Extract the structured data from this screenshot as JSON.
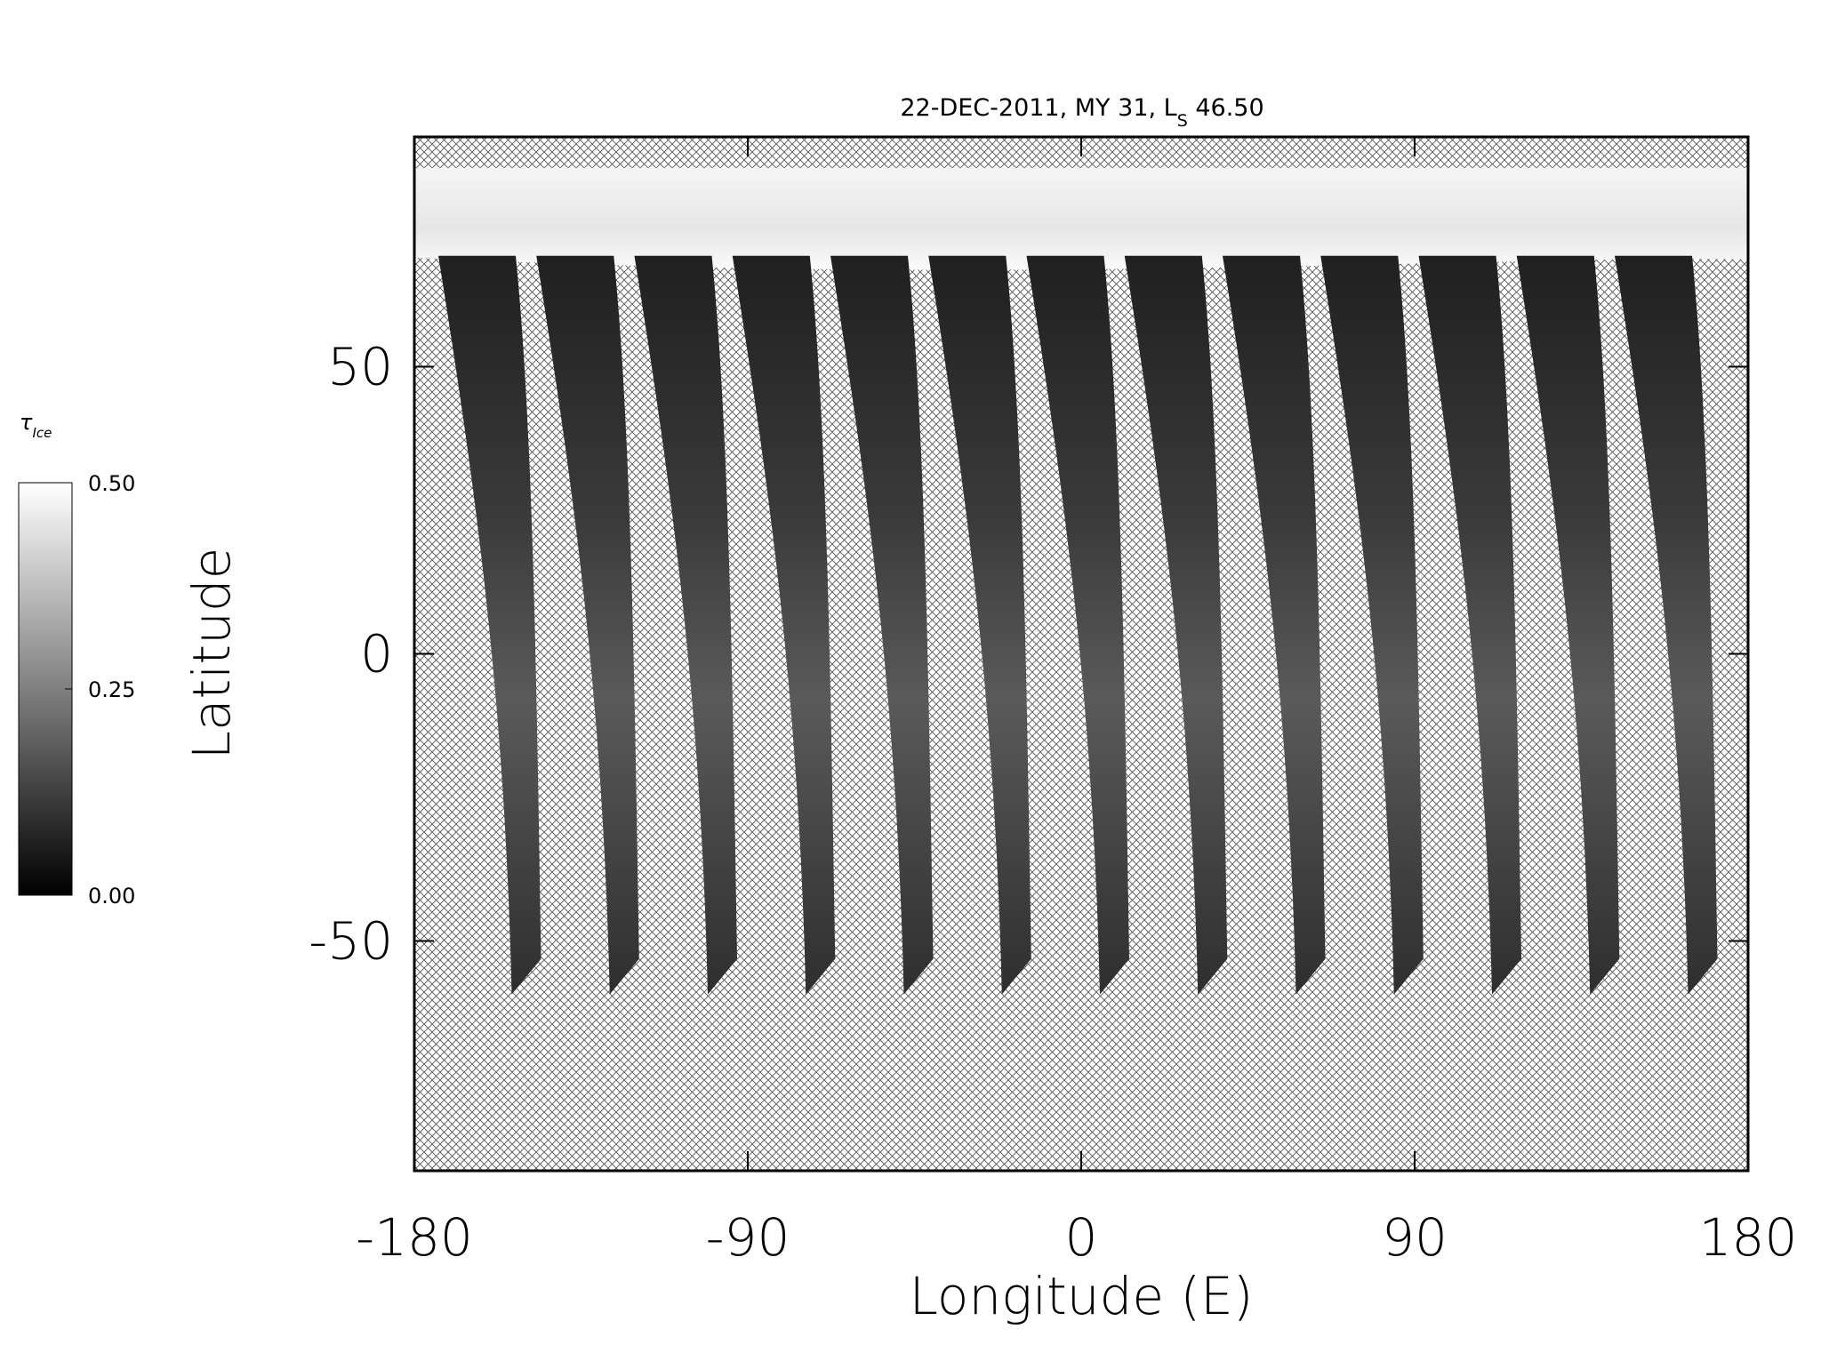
{
  "chart_data": {
    "type": "heatmap",
    "title": [
      "22-DEC-2011, MY 31,  L",
      "S",
      " 46.50"
    ],
    "xlabel": "Longitude (E)",
    "ylabel": "Latitude",
    "xlim": [
      -180,
      180
    ],
    "ylim": [
      -90,
      90
    ],
    "xticks": [
      -180,
      -90,
      0,
      90,
      180
    ],
    "yticks": [
      -50,
      0,
      50
    ],
    "colorbar": {
      "label": [
        "τ",
        "Ice"
      ],
      "lim": [
        0,
        0.5
      ],
      "ticks": [
        {
          "value": 0,
          "label": "0.00"
        },
        {
          "value": 0.25,
          "label": "0.25"
        },
        {
          "value": 0.5,
          "label": "0.50"
        }
      ],
      "colors": [
        "#000000",
        "#ffffff"
      ]
    }
  }
}
